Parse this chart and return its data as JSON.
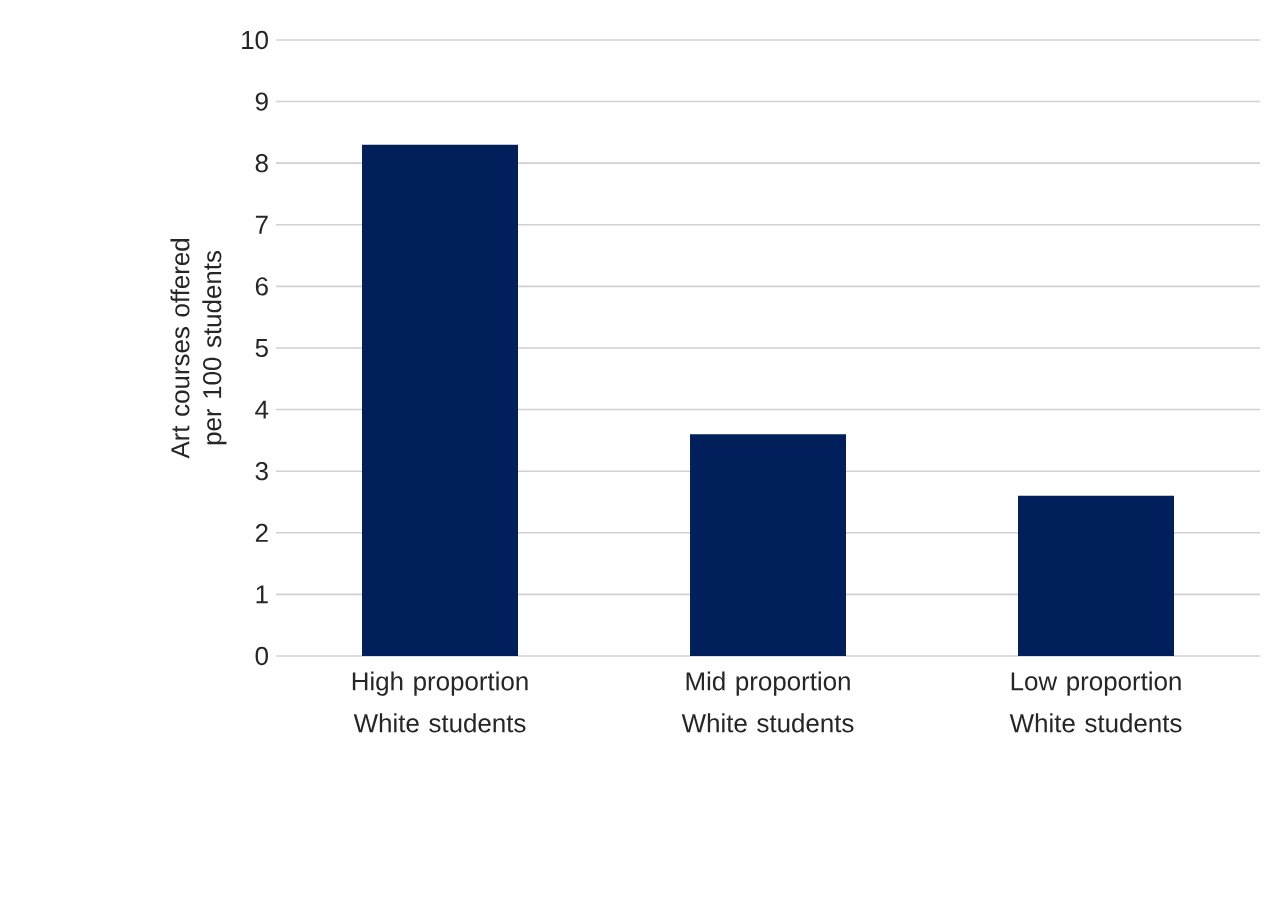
{
  "chart_data": {
    "type": "bar",
    "ylabel": "Art courses offered per 100 students",
    "categories": [
      "High proportion White students",
      "Mid proportion White students",
      "Low proportion White students"
    ],
    "values": [
      8.3,
      3.6,
      2.6
    ],
    "color": "#001f5b",
    "ylim": [
      0,
      10
    ],
    "yticks": [
      0,
      1,
      2,
      3,
      4,
      5,
      6,
      7,
      8,
      9,
      10
    ],
    "grid": "y"
  }
}
